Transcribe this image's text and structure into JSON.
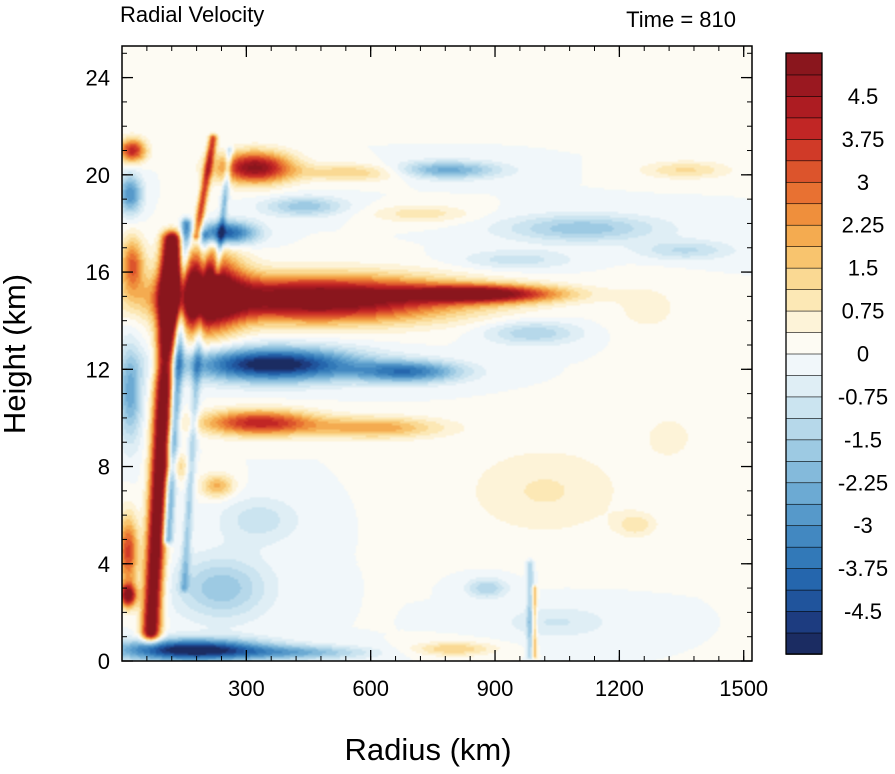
{
  "chart_data": {
    "type": "heatmap",
    "left_title": "Radial Velocity",
    "right_title": "Time = 810",
    "xlabel": "Radius (km)",
    "ylabel": "Height (km)",
    "xlim": [
      0,
      1520
    ],
    "ylim": [
      0,
      25.3
    ],
    "x_ticks": [
      {
        "value": 300,
        "label": "300"
      },
      {
        "value": 600,
        "label": "600"
      },
      {
        "value": 900,
        "label": "900"
      },
      {
        "value": 1200,
        "label": "1200"
      },
      {
        "value": 1500,
        "label": "1500"
      }
    ],
    "y_ticks": [
      {
        "value": 0,
        "label": "0"
      },
      {
        "value": 4,
        "label": "4"
      },
      {
        "value": 8,
        "label": "8"
      },
      {
        "value": 12,
        "label": "12"
      },
      {
        "value": 16,
        "label": "16"
      },
      {
        "value": 20,
        "label": "20"
      },
      {
        "value": 24,
        "label": "24"
      }
    ],
    "colorbar": {
      "min": -5.25,
      "max": 5.25,
      "step": 0.375,
      "tick_labels": [
        {
          "value": 4.5,
          "label": "4.5"
        },
        {
          "value": 3.75,
          "label": "3.75"
        },
        {
          "value": 3,
          "label": "3"
        },
        {
          "value": 2.25,
          "label": "2.25"
        },
        {
          "value": 1.5,
          "label": "1.5"
        },
        {
          "value": 0.75,
          "label": "0.75"
        },
        {
          "value": 0,
          "label": "0"
        },
        {
          "value": -0.75,
          "label": "-0.75"
        },
        {
          "value": -1.5,
          "label": "-1.5"
        },
        {
          "value": -2.25,
          "label": "-2.25"
        },
        {
          "value": -3,
          "label": "-3"
        },
        {
          "value": -3.75,
          "label": "-3.75"
        },
        {
          "value": -4.5,
          "label": "-4.5"
        }
      ]
    },
    "features": [
      {
        "kind": "ellipse",
        "cx": 470,
        "cy": 14.9,
        "rx": 420,
        "ry": 1.15,
        "value": 6
      },
      {
        "kind": "ellipse",
        "cx": 195,
        "cy": 15.2,
        "rx": 110,
        "ry": 2.1,
        "value": 6
      },
      {
        "kind": "ellipse",
        "cx": 870,
        "cy": 15.1,
        "rx": 230,
        "ry": 0.45,
        "value": 5
      },
      {
        "kind": "ellipse",
        "cx": 365,
        "cy": 12.2,
        "rx": 250,
        "ry": 0.85,
        "value": -5.5
      },
      {
        "kind": "ellipse",
        "cx": 690,
        "cy": 11.9,
        "rx": 160,
        "ry": 0.55,
        "value": -3.5
      },
      {
        "kind": "ellipse",
        "cx": 990,
        "cy": 13.5,
        "rx": 140,
        "ry": 0.6,
        "value": -1.5
      },
      {
        "kind": "ellipse",
        "cx": 330,
        "cy": 9.8,
        "rx": 170,
        "ry": 0.65,
        "value": 4
      },
      {
        "kind": "ellipse",
        "cx": 610,
        "cy": 9.6,
        "rx": 200,
        "ry": 0.55,
        "value": 2.2
      },
      {
        "kind": "ellipse",
        "cx": 1020,
        "cy": 7.0,
        "rx": 240,
        "ry": 2.3,
        "value": 0.8
      },
      {
        "kind": "ellipse",
        "cx": 1270,
        "cy": 14.5,
        "rx": 120,
        "ry": 1.5,
        "value": 0.5
      },
      {
        "kind": "ellipse",
        "cx": 320,
        "cy": 20.3,
        "rx": 110,
        "ry": 0.8,
        "value": 5
      },
      {
        "kind": "ellipse",
        "cx": 560,
        "cy": 20.1,
        "rx": 180,
        "ry": 0.45,
        "value": 1.5
      },
      {
        "kind": "ellipse",
        "cx": 250,
        "cy": 17.6,
        "rx": 90,
        "ry": 0.6,
        "value": -4.5
      },
      {
        "kind": "ellipse",
        "cx": 440,
        "cy": 18.7,
        "rx": 120,
        "ry": 0.5,
        "value": -1.8
      },
      {
        "kind": "ellipse",
        "cx": 780,
        "cy": 20.2,
        "rx": 160,
        "ry": 0.45,
        "value": -2.5
      },
      {
        "kind": "ellipse",
        "cx": 720,
        "cy": 18.4,
        "rx": 150,
        "ry": 0.45,
        "value": 1.0
      },
      {
        "kind": "ellipse",
        "cx": 1110,
        "cy": 17.8,
        "rx": 230,
        "ry": 0.7,
        "value": -1.8
      },
      {
        "kind": "ellipse",
        "cx": 950,
        "cy": 16.5,
        "rx": 170,
        "ry": 0.5,
        "value": -1.0
      },
      {
        "kind": "ellipse",
        "cx": 1360,
        "cy": 20.2,
        "rx": 130,
        "ry": 0.45,
        "value": 1.2
      },
      {
        "kind": "ellipse",
        "cx": 1360,
        "cy": 16.9,
        "rx": 140,
        "ry": 0.5,
        "value": -1.2
      },
      {
        "kind": "ellipse",
        "cx": 25,
        "cy": 21.0,
        "rx": 40,
        "ry": 0.6,
        "value": 4
      },
      {
        "kind": "ellipse",
        "cx": 20,
        "cy": 19.2,
        "rx": 35,
        "ry": 1.0,
        "value": -3
      },
      {
        "kind": "ellipse",
        "cx": 25,
        "cy": 16.3,
        "rx": 35,
        "ry": 1.4,
        "value": 3
      },
      {
        "kind": "ellipse",
        "cx": 20,
        "cy": 11.0,
        "rx": 35,
        "ry": 2.4,
        "value": -2.5
      },
      {
        "kind": "ellipse",
        "cx": 15,
        "cy": 4.5,
        "rx": 30,
        "ry": 1.8,
        "value": 3.5
      },
      {
        "kind": "ellipse",
        "cx": 15,
        "cy": 2.7,
        "rx": 25,
        "ry": 0.6,
        "value": 5
      },
      {
        "kind": "ellipse",
        "cx": 170,
        "cy": 0.45,
        "rx": 220,
        "ry": 0.55,
        "value": -5.5
      },
      {
        "kind": "ellipse",
        "cx": 430,
        "cy": 0.35,
        "rx": 200,
        "ry": 0.35,
        "value": -2
      },
      {
        "kind": "ellipse",
        "cx": 240,
        "cy": 3.0,
        "rx": 140,
        "ry": 1.6,
        "value": -1.8
      },
      {
        "kind": "ellipse",
        "cx": 330,
        "cy": 5.8,
        "rx": 120,
        "ry": 1.2,
        "value": -1.0
      },
      {
        "kind": "ellipse",
        "cx": 880,
        "cy": 3.0,
        "rx": 60,
        "ry": 0.5,
        "value": -1.5
      },
      {
        "kind": "ellipse",
        "cx": 1050,
        "cy": 1.6,
        "rx": 160,
        "ry": 0.8,
        "value": -0.8
      },
      {
        "kind": "ellipse",
        "cx": 800,
        "cy": 0.5,
        "rx": 120,
        "ry": 0.35,
        "value": 1.5
      },
      {
        "kind": "ellipse",
        "cx": 1320,
        "cy": 9.2,
        "rx": 80,
        "ry": 1.2,
        "value": 0.6
      },
      {
        "kind": "ellipse",
        "cx": 1240,
        "cy": 5.6,
        "rx": 60,
        "ry": 0.6,
        "value": 1.0
      },
      {
        "kind": "ellipse",
        "cx": 130,
        "cy": 8.0,
        "rx": 40,
        "ry": 0.7,
        "value": 1.5
      },
      {
        "kind": "ellipse",
        "cx": 230,
        "cy": 7.2,
        "rx": 50,
        "ry": 0.6,
        "value": 2.0
      },
      {
        "kind": "line",
        "x0": 70,
        "y0": 1.2,
        "x1": 120,
        "y1": 17.3,
        "w": 22,
        "value": 6
      },
      {
        "kind": "line",
        "x0": 110,
        "y0": 5.0,
        "x1": 155,
        "y1": 18.0,
        "w": 12,
        "value": -3
      },
      {
        "kind": "line",
        "x0": 150,
        "y0": 3.0,
        "x1": 200,
        "y1": 17.5,
        "w": 10,
        "value": -1.5
      },
      {
        "kind": "line",
        "x0": 180,
        "y0": 17.5,
        "x1": 220,
        "y1": 21.5,
        "w": 10,
        "value": 3.5
      },
      {
        "kind": "line",
        "x0": 230,
        "y0": 16.0,
        "x1": 260,
        "y1": 21.0,
        "w": 8,
        "value": -2.0
      },
      {
        "kind": "line",
        "x0": 985,
        "y0": 0.2,
        "x1": 985,
        "y1": 4.0,
        "w": 8,
        "value": -1.5
      },
      {
        "kind": "line",
        "x0": 995,
        "y0": 0.2,
        "x1": 995,
        "y1": 3.0,
        "w": 6,
        "value": 2.0
      }
    ]
  }
}
